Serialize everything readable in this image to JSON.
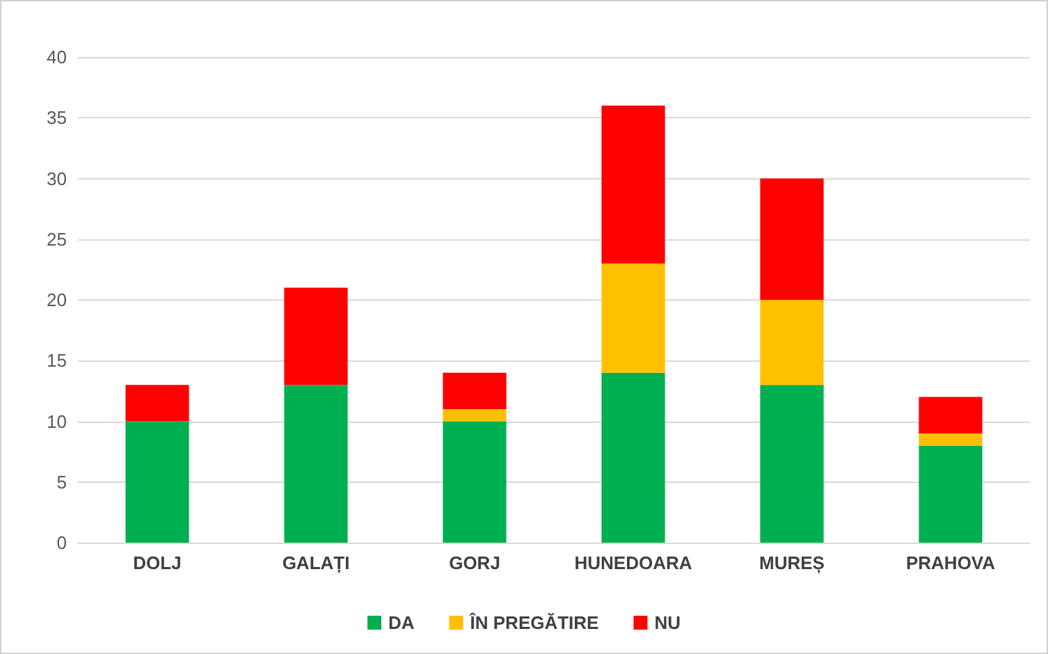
{
  "chart_data": {
    "type": "bar",
    "stacked": true,
    "categories": [
      "DOLJ",
      "GALAȚI",
      "GORJ",
      "HUNEDOARA",
      "MUREȘ",
      "PRAHOVA"
    ],
    "series": [
      {
        "name": "DA",
        "color": "#00b050",
        "values": [
          10,
          13,
          10,
          14,
          13,
          8
        ]
      },
      {
        "name": "ÎN PREGĂTIRE",
        "color": "#ffc000",
        "values": [
          0,
          0,
          1,
          9,
          7,
          1
        ]
      },
      {
        "name": "NU",
        "color": "#ff0000",
        "values": [
          3,
          8,
          3,
          13,
          10,
          3
        ]
      }
    ],
    "ylim": [
      0,
      40
    ],
    "yticks": [
      0,
      5,
      10,
      15,
      20,
      25,
      30,
      35,
      40
    ],
    "grid": "y",
    "legend": "bottom"
  }
}
